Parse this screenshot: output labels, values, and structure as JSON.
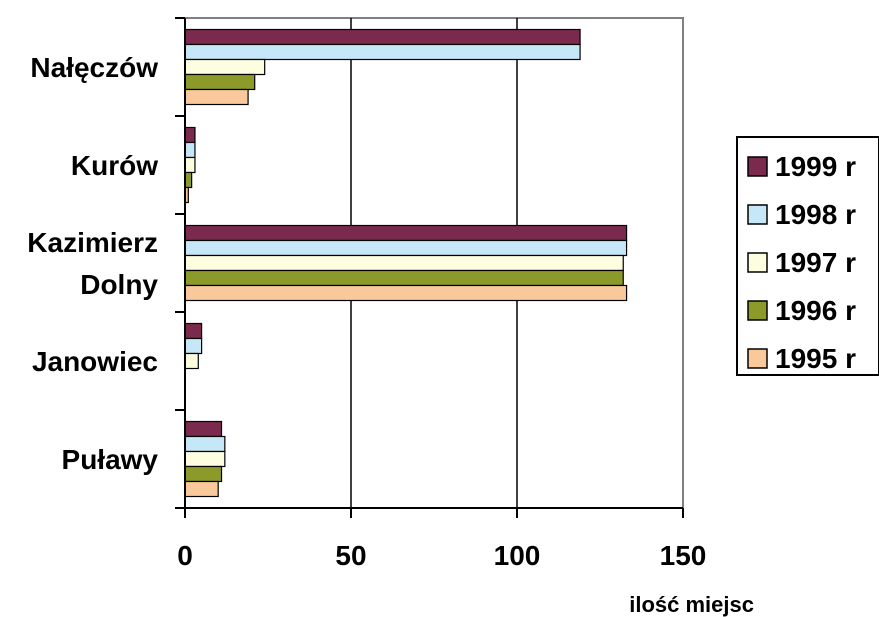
{
  "chart_data": {
    "type": "bar",
    "orientation": "horizontal",
    "categories": [
      "Nałęczów",
      "Kurów",
      "Kazimierz Dolny",
      "Janowiec",
      "Puławy"
    ],
    "category_lines": [
      [
        "Nałęczów"
      ],
      [
        "Kurów"
      ],
      [
        "Kazimierz",
        "Dolny"
      ],
      [
        "Janowiec"
      ],
      [
        "Puławy"
      ]
    ],
    "series": [
      {
        "name": "1999 r",
        "color": "#7b2a4e",
        "values": [
          119,
          3,
          133,
          5,
          11
        ]
      },
      {
        "name": "1998 r",
        "color": "#c6e7f8",
        "values": [
          119,
          3,
          133,
          5,
          12
        ]
      },
      {
        "name": "1997 r",
        "color": "#fdfde0",
        "values": [
          24,
          3,
          132,
          4,
          12
        ]
      },
      {
        "name": "1996 r",
        "color": "#8c9a2a",
        "values": [
          21,
          2,
          132,
          0,
          11
        ]
      },
      {
        "name": "1995 r",
        "color": "#f9c99b",
        "values": [
          19,
          1,
          133,
          0,
          10
        ]
      }
    ],
    "xticks": [
      0,
      50,
      100,
      150
    ],
    "xlim": [
      0,
      150
    ],
    "xlabel": "ilość miejsc",
    "ylabel": "",
    "title": "",
    "grid": "vertical",
    "legend": "right"
  }
}
